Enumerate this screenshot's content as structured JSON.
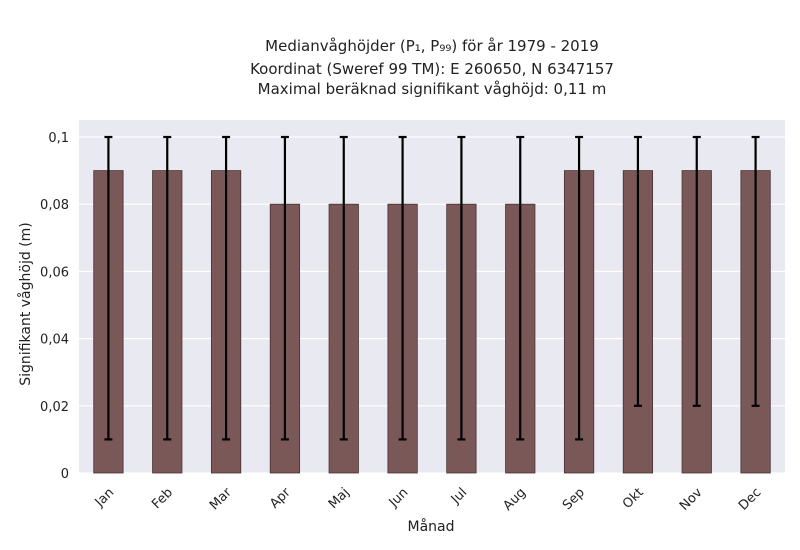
{
  "chart_data": {
    "type": "bar",
    "title_lines": [
      "Medianvåghöjder (P₁, P₉₉) för år 1979 - 2019",
      "Koordinat (Sweref 99 TM): E 260650, N 6347157",
      "Maximal beräknad signifikant våghöjd: 0,11 m"
    ],
    "xlabel": "Månad",
    "ylabel": "Signifikant våghöjd (m)",
    "categories": [
      "Jan",
      "Feb",
      "Mar",
      "Apr",
      "Maj",
      "Jun",
      "Jul",
      "Aug",
      "Sep",
      "Okt",
      "Nov",
      "Dec"
    ],
    "values": [
      0.09,
      0.09,
      0.09,
      0.08,
      0.08,
      0.08,
      0.08,
      0.08,
      0.09,
      0.09,
      0.09,
      0.09
    ],
    "error_low": [
      0.01,
      0.01,
      0.01,
      0.01,
      0.01,
      0.01,
      0.01,
      0.01,
      0.01,
      0.02,
      0.02,
      0.02
    ],
    "error_high": [
      0.1,
      0.1,
      0.1,
      0.1,
      0.1,
      0.1,
      0.1,
      0.1,
      0.1,
      0.1,
      0.1,
      0.1
    ],
    "ylim": [
      0,
      0.1
    ],
    "yticks": [
      0,
      0.02,
      0.04,
      0.06,
      0.08,
      0.1
    ],
    "ytick_labels": [
      "0",
      "0,02",
      "0,04",
      "0,06",
      "0,08",
      "0,1"
    ],
    "grid": true,
    "colors": {
      "bar": "#7a5858",
      "bar_edge": "#4a3232",
      "error": "#000000",
      "plot_bg": "#e9e9f1",
      "grid": "#ffffff"
    }
  }
}
